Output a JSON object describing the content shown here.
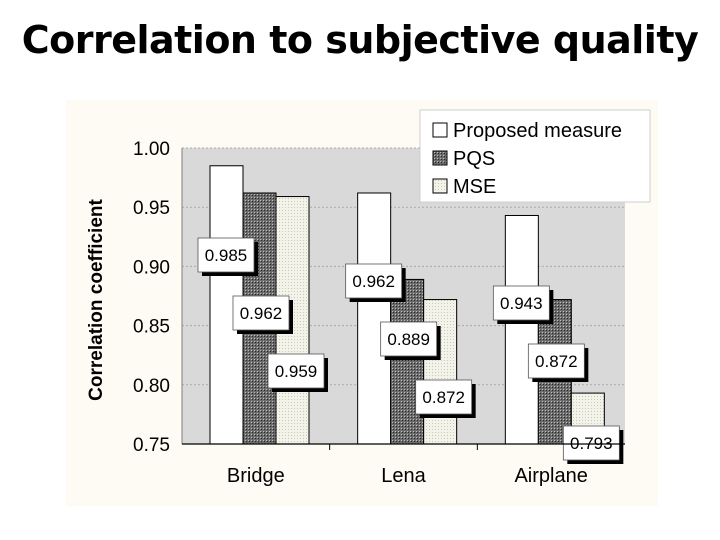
{
  "slide": {
    "title": "Correlation to subjective quality"
  },
  "chart_data": {
    "type": "bar",
    "title": "",
    "categories": [
      "Bridge",
      "Lena",
      "Airplane"
    ],
    "series": [
      {
        "name": "Proposed measure",
        "values": [
          0.985,
          0.962,
          0.943
        ],
        "pattern": "white"
      },
      {
        "name": "PQS",
        "values": [
          0.962,
          0.889,
          0.872
        ],
        "pattern": "dark-mesh"
      },
      {
        "name": "MSE",
        "values": [
          0.959,
          0.872,
          0.793
        ],
        "pattern": "light-mesh"
      }
    ],
    "data_labels": [
      [
        "0.985",
        "0.962",
        "0.959"
      ],
      [
        "0.962",
        "0.889",
        "0.872"
      ],
      [
        "0.943",
        "0.872",
        "0.793"
      ]
    ],
    "xlabel": "",
    "ylabel": "Correlation coefficient",
    "ylim": [
      0.75,
      1.0
    ],
    "yticks": [
      "1.00",
      "0.95",
      "0.90",
      "0.85",
      "0.80",
      "0.75"
    ],
    "legend_position": "top-right",
    "grid": true,
    "colors": {
      "plot_bg": "#d9d9d9",
      "grid": "#a9a9a9",
      "bar_white": "#ffffff",
      "bar_dark": "#5a5a5a",
      "bar_light": "#efefe6",
      "panel_bg": "#fdfbf3"
    }
  }
}
